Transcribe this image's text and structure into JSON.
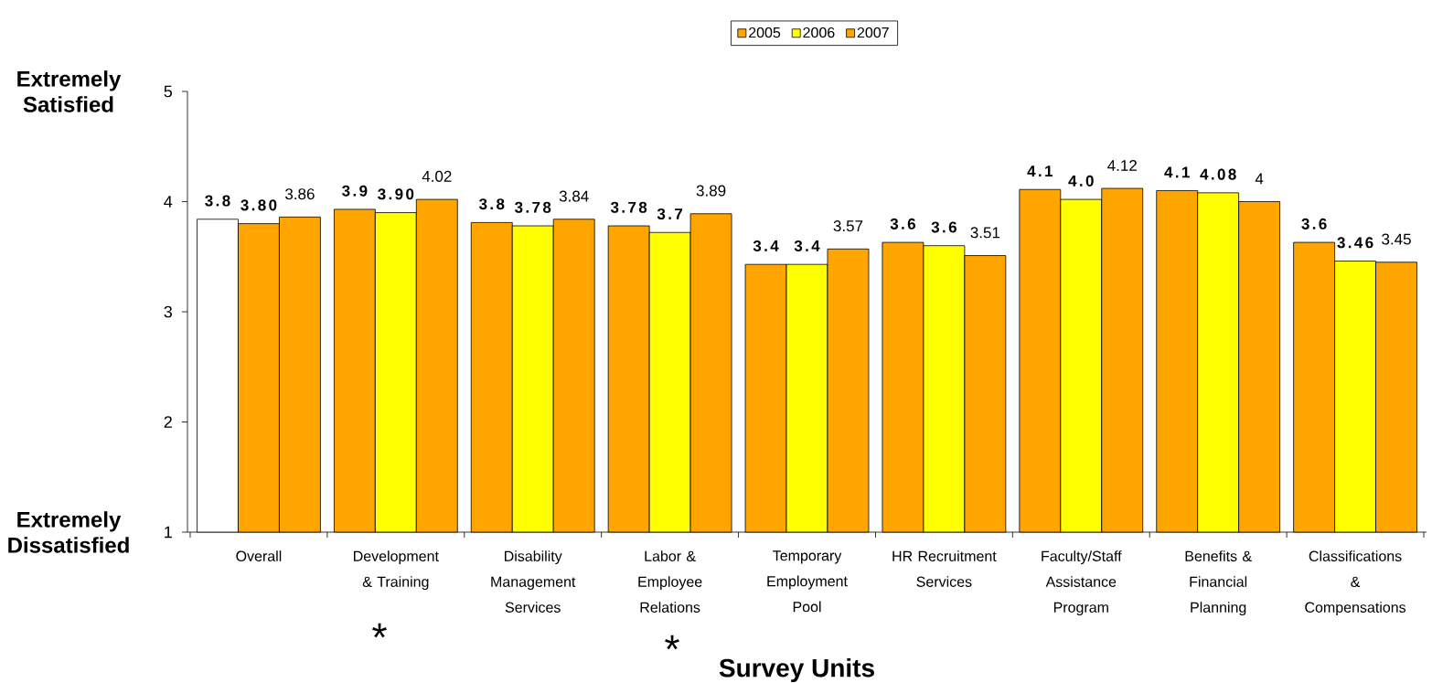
{
  "chart_data": {
    "type": "bar",
    "xlabel": "Survey Units",
    "categories": [
      "Overall",
      "Development & Training",
      "Disability Management Services",
      "Labor & Employee Relations",
      "Temporary Employment Pool",
      "HR Recruitment Services",
      "Faculty/Staff Assistance Program",
      "Benefits & Financial Planning",
      "Classifications & Compensations"
    ],
    "series": [
      {
        "name": "2005",
        "color": "#ffa500",
        "colors": [
          "#ffffff",
          "#ffa500",
          "#ffa500",
          "#ffa500",
          "#ffa500",
          "#ffa500",
          "#ffa500",
          "#ffa500",
          "#ffa500"
        ],
        "values": [
          3.84,
          3.93,
          3.81,
          3.78,
          3.43,
          3.63,
          4.11,
          4.1,
          3.63
        ],
        "value_labels": [
          "3.8",
          "3.9",
          "3.8",
          "3.78",
          "3.4",
          "3.6",
          "4.1",
          "4.1",
          "3.6"
        ]
      },
      {
        "name": "2006",
        "color": "#ffff00",
        "colors": [
          "#ffa500",
          "#ffff00",
          "#ffff00",
          "#ffff00",
          "#ffff00",
          "#ffff00",
          "#ffff00",
          "#ffff00",
          "#ffff00"
        ],
        "values": [
          3.8,
          3.9,
          3.78,
          3.72,
          3.43,
          3.6,
          4.02,
          4.08,
          3.46
        ],
        "value_labels": [
          "3.80",
          "3.90",
          "3.78",
          "3.7",
          "3.4",
          "3.6",
          "4.0",
          "4.08",
          "3.46"
        ]
      },
      {
        "name": "2007",
        "color": "#ffa500",
        "values": [
          3.86,
          4.02,
          3.84,
          3.89,
          3.57,
          3.51,
          4.12,
          4,
          3.45
        ],
        "value_labels": [
          "3.86",
          "4.02",
          "3.84",
          "3.89",
          "3.57",
          "3.51",
          "4.12",
          "4",
          "3.45"
        ]
      }
    ],
    "ylim": [
      1,
      5
    ],
    "yticks": [
      1,
      2,
      3,
      4,
      5
    ],
    "legend": "top",
    "annotations": [
      "Extremely Satisfied",
      "Extremely Dissatisfied",
      "*",
      "*"
    ]
  }
}
